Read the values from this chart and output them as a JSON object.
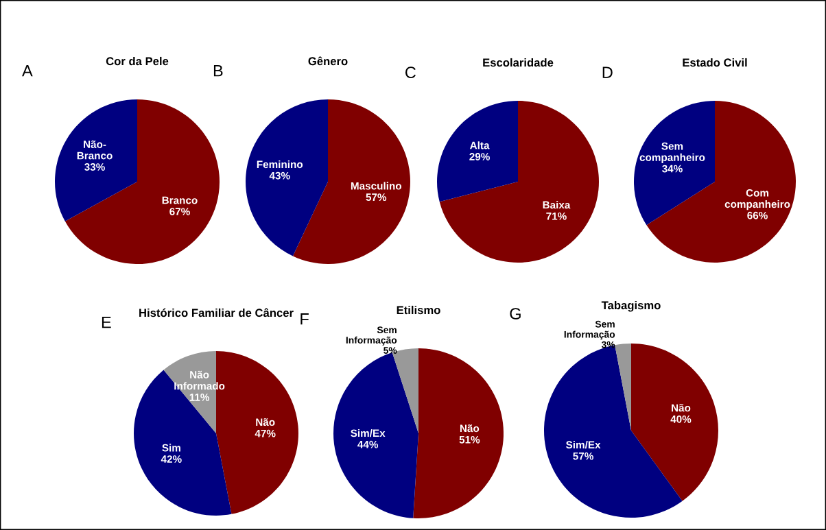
{
  "chart_data": [
    {
      "type": "pie",
      "title": "Cor da Pele",
      "annotations": [
        "A"
      ],
      "categories": [
        "Branco",
        "Não-\nBranco"
      ],
      "values": [
        67,
        33
      ],
      "value_labels": [
        "67%",
        "33%"
      ],
      "colors": [
        "#800000",
        "#000080"
      ]
    },
    {
      "type": "pie",
      "title": "Gênero",
      "annotations": [
        "B"
      ],
      "categories": [
        "Masculino",
        "Feminino"
      ],
      "values": [
        57,
        43
      ],
      "value_labels": [
        "57%",
        "43%"
      ],
      "colors": [
        "#800000",
        "#000080"
      ]
    },
    {
      "type": "pie",
      "title": "Escolaridade",
      "annotations": [
        "C"
      ],
      "categories": [
        "Baixa",
        "Alta"
      ],
      "values": [
        71,
        29
      ],
      "value_labels": [
        "71%",
        "29%"
      ],
      "colors": [
        "#800000",
        "#000080"
      ]
    },
    {
      "type": "pie",
      "title": "Estado Civil",
      "annotations": [
        "D"
      ],
      "categories": [
        "Com\ncompanheiro",
        "Sem\ncompanheiro"
      ],
      "values": [
        66,
        34
      ],
      "value_labels": [
        "66%",
        "34%"
      ],
      "colors": [
        "#800000",
        "#000080"
      ]
    },
    {
      "type": "pie",
      "title": "Histórico Familiar de Câncer",
      "annotations": [
        "E"
      ],
      "categories": [
        "Não",
        "Sim",
        "Não\nInformado"
      ],
      "values": [
        47,
        42,
        11
      ],
      "value_labels": [
        "47%",
        "42%",
        "11%"
      ],
      "colors": [
        "#800000",
        "#000080",
        "#999999"
      ]
    },
    {
      "type": "pie",
      "title": "Etilismo",
      "annotations": [
        "F"
      ],
      "categories": [
        "Não",
        "Sim/Ex",
        "Sem\nInformação"
      ],
      "values": [
        51,
        44,
        5
      ],
      "value_labels": [
        "51%",
        "44%",
        "5%"
      ],
      "colors": [
        "#800000",
        "#000080",
        "#999999"
      ]
    },
    {
      "type": "pie",
      "title": "Tabagismo",
      "annotations": [
        "G"
      ],
      "categories": [
        "Não",
        "Sim/Ex",
        "Sem\nInformação"
      ],
      "values": [
        40,
        57,
        3
      ],
      "value_labels": [
        "40%",
        "57%",
        "3%"
      ],
      "colors": [
        "#800000",
        "#000080",
        "#999999"
      ]
    }
  ]
}
